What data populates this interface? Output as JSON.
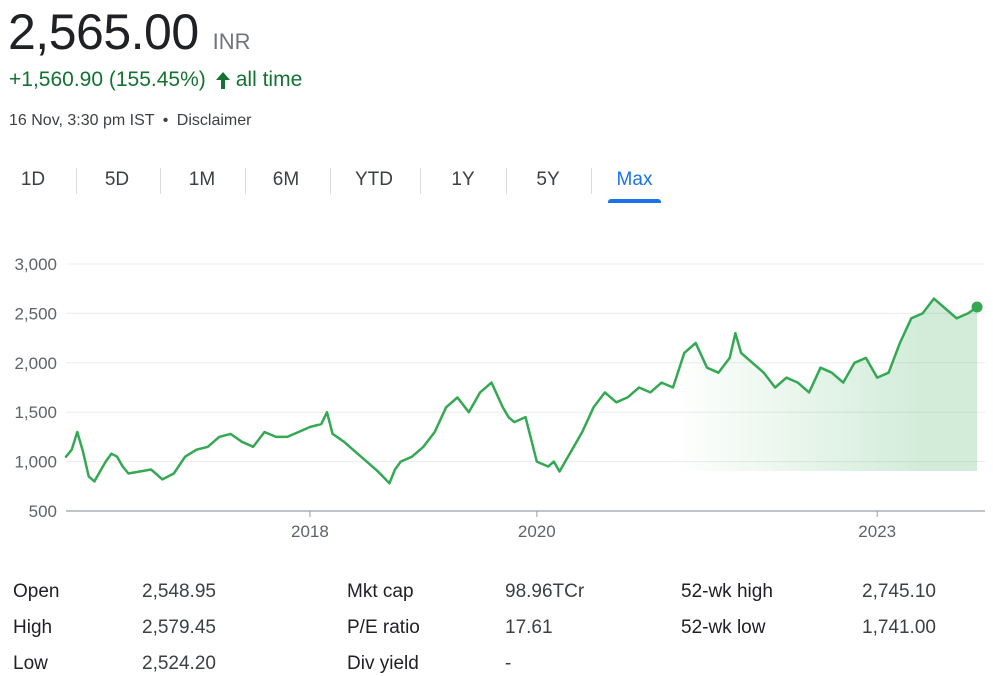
{
  "quote": {
    "price": "2,565.00",
    "currency": "INR",
    "change": "+1,560.90 (155.45%)",
    "period": "all time",
    "timestamp": "16 Nov, 3:30 pm IST",
    "bullet": "•",
    "disclaimer": "Disclaimer",
    "up_color": "#137333"
  },
  "tabs": [
    {
      "label": "1D",
      "active": false
    },
    {
      "label": "5D",
      "active": false
    },
    {
      "label": "1M",
      "active": false
    },
    {
      "label": "6M",
      "active": false
    },
    {
      "label": "YTD",
      "active": false
    },
    {
      "label": "1Y",
      "active": false
    },
    {
      "label": "5Y",
      "active": false
    },
    {
      "label": "Max",
      "active": true
    }
  ],
  "chart_data": {
    "type": "area",
    "ylim": [
      500,
      3000
    ],
    "yticks": [
      500,
      1000,
      1500,
      2000,
      2500,
      3000
    ],
    "ytick_labels": [
      "500",
      "1,000",
      "1,500",
      "2,000",
      "2,500",
      "3,000"
    ],
    "xlim": [
      2015.85,
      2023.95
    ],
    "xticks": [
      2018,
      2020,
      2023
    ],
    "xtick_labels": [
      "2018",
      "2020",
      "2023"
    ],
    "grid": true,
    "line_color": "#34a853",
    "series": [
      {
        "x": [
          2015.85,
          2015.9,
          2015.95,
          2016.0,
          2016.05,
          2016.1,
          2016.15,
          2016.2,
          2016.25,
          2016.3,
          2016.35,
          2016.4,
          2016.5,
          2016.6,
          2016.7,
          2016.8,
          2016.9,
          2017.0,
          2017.1,
          2017.2,
          2017.3,
          2017.4,
          2017.5,
          2017.6,
          2017.7,
          2017.8,
          2017.9,
          2018.0,
          2018.1,
          2018.15,
          2018.2,
          2018.3,
          2018.4,
          2018.5,
          2018.6,
          2018.7,
          2018.75,
          2018.8,
          2018.9,
          2019.0,
          2019.1,
          2019.2,
          2019.3,
          2019.4,
          2019.5,
          2019.6,
          2019.7,
          2019.75,
          2019.8,
          2019.9,
          2020.0,
          2020.1,
          2020.15,
          2020.2,
          2020.3,
          2020.4,
          2020.5,
          2020.6,
          2020.7,
          2020.8,
          2020.9,
          2021.0,
          2021.1,
          2021.2,
          2021.3,
          2021.4,
          2021.5,
          2021.6,
          2021.7,
          2021.75,
          2021.8,
          2021.9,
          2022.0,
          2022.1,
          2022.2,
          2022.3,
          2022.4,
          2022.5,
          2022.6,
          2022.7,
          2022.8,
          2022.9,
          2023.0,
          2023.1,
          2023.2,
          2023.3,
          2023.4,
          2023.5,
          2023.6,
          2023.7,
          2023.8,
          2023.88
        ],
        "y": [
          1050,
          1120,
          1300,
          1100,
          850,
          800,
          900,
          1000,
          1080,
          1050,
          950,
          880,
          900,
          920,
          820,
          880,
          1050,
          1120,
          1150,
          1250,
          1280,
          1200,
          1150,
          1300,
          1250,
          1250,
          1300,
          1350,
          1380,
          1500,
          1280,
          1200,
          1100,
          1000,
          900,
          780,
          920,
          1000,
          1050,
          1150,
          1300,
          1550,
          1650,
          1500,
          1700,
          1800,
          1550,
          1450,
          1400,
          1450,
          1000,
          950,
          1000,
          900,
          1100,
          1300,
          1550,
          1700,
          1600,
          1650,
          1750,
          1700,
          1800,
          1750,
          2100,
          2200,
          1950,
          1900,
          2050,
          2300,
          2100,
          2000,
          1900,
          1750,
          1850,
          1800,
          1700,
          1950,
          1900,
          1800,
          2000,
          2050,
          1850,
          1900,
          2200,
          2450,
          2500,
          2650,
          2550,
          2450,
          2500,
          2565
        ]
      }
    ],
    "last_value": 2565
  },
  "stats": [
    {
      "label": "Open",
      "value": "2,548.95"
    },
    {
      "label": "High",
      "value": "2,579.45"
    },
    {
      "label": "Low",
      "value": "2,524.20"
    },
    {
      "label": "Mkt cap",
      "value": "98.96TCr"
    },
    {
      "label": "P/E ratio",
      "value": "17.61"
    },
    {
      "label": "Div yield",
      "value": "-"
    },
    {
      "label": "52-wk high",
      "value": "2,745.10"
    },
    {
      "label": "52-wk low",
      "value": "1,741.00"
    }
  ]
}
